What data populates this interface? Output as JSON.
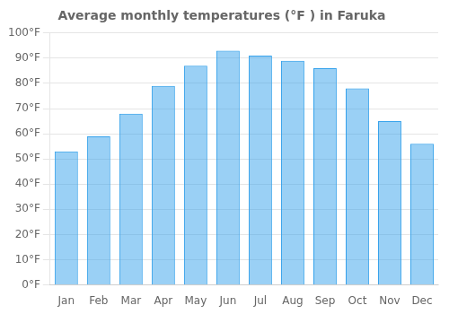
{
  "chart_data": {
    "type": "bar",
    "title": "Average monthly temperatures (°F ) in Faruka",
    "categories": [
      "Jan",
      "Feb",
      "Mar",
      "Apr",
      "May",
      "Jun",
      "Jul",
      "Aug",
      "Sep",
      "Oct",
      "Nov",
      "Dec"
    ],
    "values": [
      53,
      59,
      68,
      79,
      87,
      93,
      91,
      89,
      86,
      78,
      65,
      56
    ],
    "ylim": [
      0,
      100
    ],
    "yticks": [
      {
        "value": 0,
        "label": "0°F"
      },
      {
        "value": 10,
        "label": "10°F"
      },
      {
        "value": 20,
        "label": "20°F"
      },
      {
        "value": 30,
        "label": "30°F"
      },
      {
        "value": 40,
        "label": "40°F"
      },
      {
        "value": 50,
        "label": "50°F"
      },
      {
        "value": 60,
        "label": "60°F"
      },
      {
        "value": 70,
        "label": "70°F"
      },
      {
        "value": 80,
        "label": "80°F"
      },
      {
        "value": 90,
        "label": "90°F"
      },
      {
        "value": 100,
        "label": "100°F"
      }
    ],
    "grid": true
  }
}
